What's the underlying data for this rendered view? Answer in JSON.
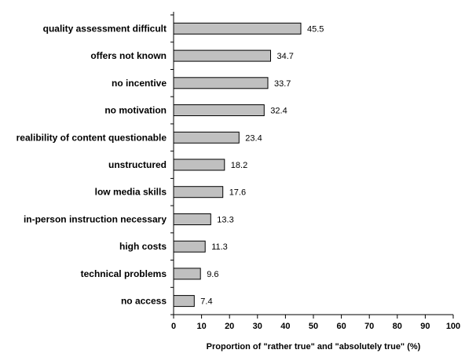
{
  "chart_data": {
    "type": "bar",
    "orientation": "horizontal",
    "categories": [
      "quality assessment difficult",
      "offers not known",
      "no incentive",
      "no motivation",
      "realibility of content questionable",
      "unstructured",
      "low media skills",
      "in-person instruction necessary",
      "high costs",
      "technical problems",
      "no access"
    ],
    "values": [
      45.5,
      34.7,
      33.7,
      32.4,
      23.4,
      18.2,
      17.6,
      13.3,
      11.3,
      9.6,
      7.4
    ],
    "value_labels": [
      "45.5",
      "34.7",
      "33.7",
      "32.4",
      "23.4",
      "18.2",
      "17.6",
      "13.3",
      "11.3",
      "9.6",
      "7.4"
    ],
    "xlabel": "Proportion of \"rather true\" and \"absolutely true\" (%)",
    "ylabel": "",
    "xlim": [
      0,
      100
    ],
    "ticks": [
      0,
      10,
      20,
      30,
      40,
      50,
      60,
      70,
      80,
      90,
      100
    ],
    "tick_labels": [
      "0",
      "10",
      "20",
      "30",
      "40",
      "50",
      "60",
      "70",
      "80",
      "90",
      "100"
    ],
    "grid": false,
    "legend": "none",
    "colors": {
      "bar_fill": "#c0c0c0",
      "bar_stroke": "#000000",
      "axis": "#000000",
      "text": "#000000"
    }
  }
}
